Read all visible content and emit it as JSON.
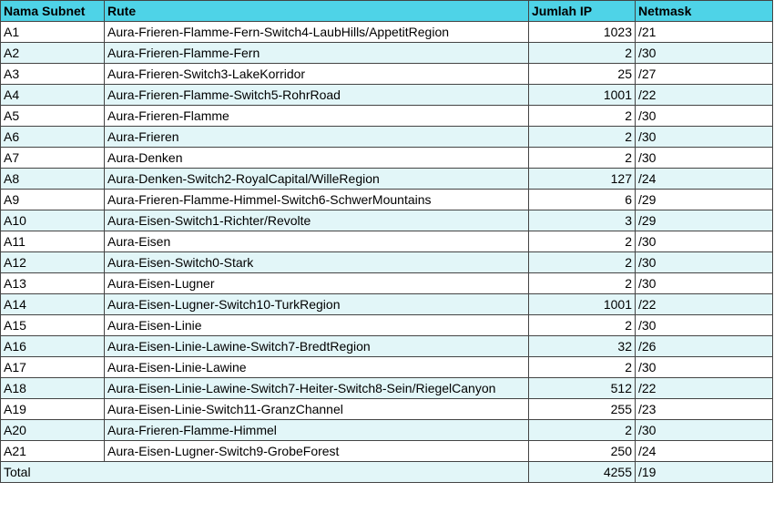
{
  "headers": {
    "name": "Nama Subnet",
    "route": "Rute",
    "ip": "Jumlah IP",
    "mask": "Netmask"
  },
  "rows": [
    {
      "name": "A1",
      "route": "Aura-Frieren-Flamme-Fern-Switch4-LaubHills/AppetitRegion",
      "ip": "1023",
      "mask": "/21"
    },
    {
      "name": "A2",
      "route": "Aura-Frieren-Flamme-Fern",
      "ip": "2",
      "mask": "/30"
    },
    {
      "name": "A3",
      "route": "Aura-Frieren-Switch3-LakeKorridor",
      "ip": "25",
      "mask": "/27"
    },
    {
      "name": "A4",
      "route": "Aura-Frieren-Flamme-Switch5-RohrRoad",
      "ip": "1001",
      "mask": "/22"
    },
    {
      "name": "A5",
      "route": "Aura-Frieren-Flamme",
      "ip": "2",
      "mask": "/30"
    },
    {
      "name": "A6",
      "route": "Aura-Frieren",
      "ip": "2",
      "mask": "/30"
    },
    {
      "name": "A7",
      "route": "Aura-Denken",
      "ip": "2",
      "mask": "/30"
    },
    {
      "name": "A8",
      "route": "Aura-Denken-Switch2-RoyalCapital/WilleRegion",
      "ip": "127",
      "mask": "/24"
    },
    {
      "name": "A9",
      "route": "Aura-Frieren-Flamme-Himmel-Switch6-SchwerMountains",
      "ip": "6",
      "mask": "/29"
    },
    {
      "name": "A10",
      "route": "Aura-Eisen-Switch1-Richter/Revolte",
      "ip": "3",
      "mask": "/29"
    },
    {
      "name": "A11",
      "route": "Aura-Eisen",
      "ip": "2",
      "mask": "/30"
    },
    {
      "name": "A12",
      "route": "Aura-Eisen-Switch0-Stark",
      "ip": "2",
      "mask": "/30"
    },
    {
      "name": "A13",
      "route": "Aura-Eisen-Lugner",
      "ip": "2",
      "mask": "/30"
    },
    {
      "name": "A14",
      "route": "Aura-Eisen-Lugner-Switch10-TurkRegion",
      "ip": "1001",
      "mask": "/22"
    },
    {
      "name": "A15",
      "route": "Aura-Eisen-Linie",
      "ip": "2",
      "mask": "/30"
    },
    {
      "name": "A16",
      "route": "Aura-Eisen-Linie-Lawine-Switch7-BredtRegion",
      "ip": "32",
      "mask": "/26"
    },
    {
      "name": "A17",
      "route": "Aura-Eisen-Linie-Lawine",
      "ip": "2",
      "mask": "/30"
    },
    {
      "name": "A18",
      "route": "Aura-Eisen-Linie-Lawine-Switch7-Heiter-Switch8-Sein/RiegelCanyon",
      "ip": "512",
      "mask": "/22"
    },
    {
      "name": "A19",
      "route": "Aura-Eisen-Linie-Switch11-GranzChannel",
      "ip": "255",
      "mask": "/23"
    },
    {
      "name": "A20",
      "route": "Aura-Frieren-Flamme-Himmel",
      "ip": "2",
      "mask": "/30"
    },
    {
      "name": "A21",
      "route": "Aura-Eisen-Lugner-Switch9-GrobeForest",
      "ip": "250",
      "mask": "/24"
    }
  ],
  "total": {
    "label": "Total",
    "ip": "4255",
    "mask": "/19"
  }
}
